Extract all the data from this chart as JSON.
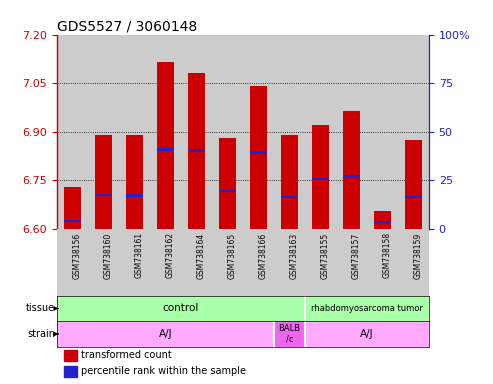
{
  "title": "GDS5527 / 3060148",
  "samples": [
    "GSM738156",
    "GSM738160",
    "GSM738161",
    "GSM738162",
    "GSM738164",
    "GSM738165",
    "GSM738166",
    "GSM738163",
    "GSM738155",
    "GSM738157",
    "GSM738158",
    "GSM738159"
  ],
  "bar_tops": [
    6.73,
    6.89,
    6.89,
    7.115,
    7.08,
    6.88,
    7.04,
    6.89,
    6.92,
    6.965,
    6.655,
    6.875
  ],
  "bar_bottom": 6.6,
  "percentile_values": [
    6.625,
    6.705,
    6.703,
    6.845,
    6.842,
    6.718,
    6.836,
    6.698,
    6.753,
    6.762,
    6.622,
    6.698
  ],
  "ylim": [
    6.6,
    7.2
  ],
  "y2lim": [
    0,
    100
  ],
  "yticks": [
    6.6,
    6.75,
    6.9,
    7.05,
    7.2
  ],
  "y2ticks": [
    0,
    25,
    50,
    75,
    100
  ],
  "bar_color": "#cc0000",
  "percentile_color": "#2222cc",
  "col_bg_color": "#cccccc",
  "tissue_control_color": "#aaffaa",
  "tissue_tumor_color": "#aaffaa",
  "strain_aj_color": "#ffaaff",
  "strain_balbc_color": "#ee66ee",
  "legend_items": [
    {
      "label": "transformed count",
      "color": "#cc0000"
    },
    {
      "label": "percentile rank within the sample",
      "color": "#2222cc"
    }
  ],
  "left_axis_color": "#cc0000",
  "right_axis_color": "#2222cc",
  "title_fontsize": 10,
  "bar_width": 0.55
}
